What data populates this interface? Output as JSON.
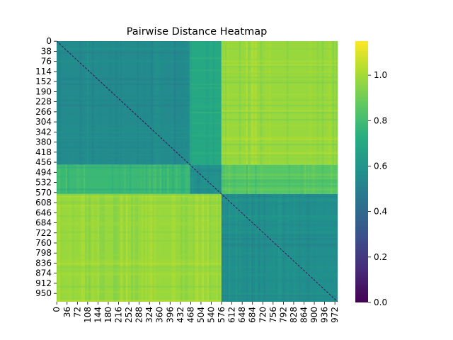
{
  "chart_data": {
    "type": "heatmap",
    "title": "Pairwise Distance Heatmap",
    "xlabel": "",
    "ylabel": "",
    "n": 982,
    "x_tick_labels": [
      "0",
      "36",
      "72",
      "108",
      "144",
      "180",
      "216",
      "252",
      "288",
      "324",
      "360",
      "396",
      "432",
      "468",
      "504",
      "540",
      "576",
      "612",
      "648",
      "684",
      "720",
      "756",
      "792",
      "828",
      "864",
      "900",
      "936",
      "972"
    ],
    "y_tick_labels": [
      "0",
      "38",
      "76",
      "114",
      "152",
      "190",
      "228",
      "266",
      "304",
      "342",
      "380",
      "418",
      "456",
      "494",
      "532",
      "570",
      "608",
      "646",
      "684",
      "722",
      "760",
      "798",
      "836",
      "874",
      "912",
      "950"
    ],
    "colorscale": "viridis",
    "colorbar": {
      "range": [
        0.0,
        1.15
      ],
      "tick_values": [
        0.0,
        0.2,
        0.4,
        0.6,
        0.8,
        1.0
      ],
      "tick_labels": [
        "0.0",
        "0.2",
        "0.4",
        "0.6",
        "0.8",
        "1.0"
      ]
    },
    "blocks": [
      {
        "rows": [
          0,
          466
        ],
        "cols": [
          0,
          466
        ],
        "value": 0.55
      },
      {
        "rows": [
          0,
          466
        ],
        "cols": [
          466,
          576
        ],
        "value": 0.7
      },
      {
        "rows": [
          0,
          466
        ],
        "cols": [
          576,
          982
        ],
        "value": 0.98
      },
      {
        "rows": [
          466,
          576
        ],
        "cols": [
          0,
          466
        ],
        "value": 0.78
      },
      {
        "rows": [
          466,
          576
        ],
        "cols": [
          466,
          576
        ],
        "value": 0.58
      },
      {
        "rows": [
          466,
          576
        ],
        "cols": [
          576,
          982
        ],
        "value": 0.85
      },
      {
        "rows": [
          576,
          982
        ],
        "cols": [
          0,
          576
        ],
        "value": 0.98
      },
      {
        "rows": [
          576,
          982
        ],
        "cols": [
          576,
          982
        ],
        "value": 0.57
      }
    ],
    "diagonal_value": 0.0
  }
}
